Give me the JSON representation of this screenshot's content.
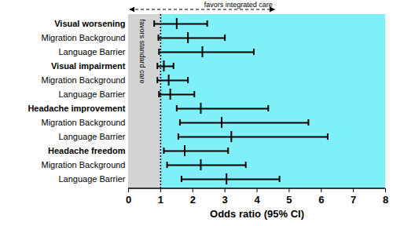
{
  "chart_data": {
    "type": "forest",
    "categories": [
      "Visual worsening",
      "Migration Background",
      "Language Barrier",
      "Visual impairment",
      "Migration Background",
      "Language Barrier",
      "Headache improvement",
      "Migration Background",
      "Language Barrier",
      "Headache freedom",
      "Migration Background",
      "Language Barrier"
    ],
    "values": [
      1.5,
      1.85,
      2.3,
      1.1,
      1.25,
      1.3,
      2.25,
      2.9,
      3.2,
      1.75,
      2.25,
      3.05
    ],
    "ci_low": [
      0.8,
      0.93,
      0.95,
      0.9,
      0.9,
      0.95,
      1.5,
      1.6,
      1.55,
      1.1,
      1.2,
      1.65
    ],
    "ci_high": [
      2.45,
      3.0,
      3.9,
      1.4,
      1.85,
      2.05,
      4.35,
      5.6,
      6.2,
      3.1,
      3.65,
      4.7
    ],
    "xlabel": "Odds ratio (95% CI)",
    "xlim": [
      0,
      8
    ],
    "xticks": [
      0,
      1,
      2,
      3,
      4,
      5,
      6,
      7,
      8
    ],
    "reference": 1,
    "annotations": [
      "favors standard care",
      "favors integrated care"
    ],
    "color": "#000000"
  }
}
